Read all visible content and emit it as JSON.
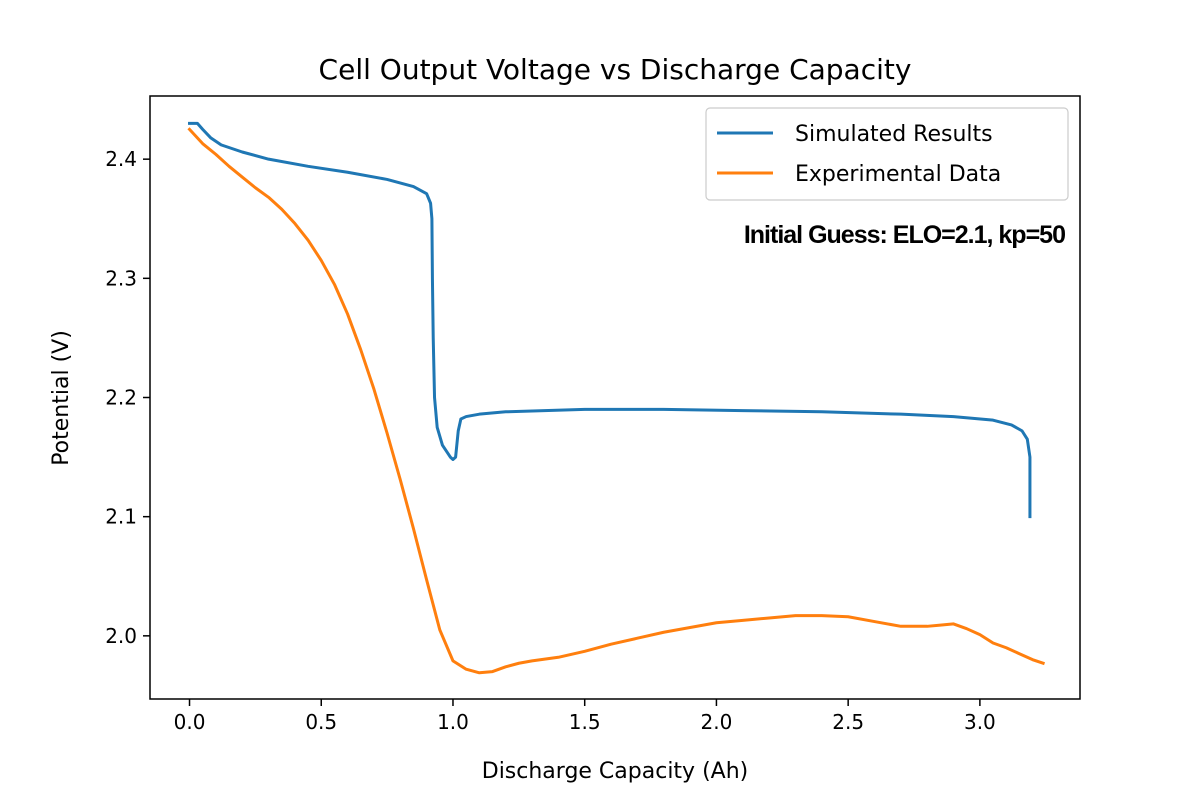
{
  "chart_data": {
    "type": "line",
    "title": "Cell Output Voltage vs Discharge Capacity",
    "xlabel": "Discharge Capacity (Ah)",
    "ylabel": "Potential (V)",
    "xlim": [
      -0.15,
      3.38
    ],
    "ylim": [
      1.947,
      2.453
    ],
    "xticks": [
      0.0,
      0.5,
      1.0,
      1.5,
      2.0,
      2.5,
      3.0
    ],
    "xtick_labels": [
      "0.0",
      "0.5",
      "1.0",
      "1.5",
      "2.0",
      "2.5",
      "3.0"
    ],
    "yticks": [
      2.0,
      2.1,
      2.2,
      2.3,
      2.4
    ],
    "ytick_labels": [
      "2.0",
      "2.1",
      "2.2",
      "2.3",
      "2.4"
    ],
    "grid": false,
    "legend_position": "top-right",
    "annotation": "Initial Guess: ELO=2.1, kp=50",
    "series": [
      {
        "name": "Simulated Results",
        "color": "#1f77b4",
        "x": [
          0.0,
          0.03,
          0.05,
          0.08,
          0.12,
          0.2,
          0.3,
          0.45,
          0.6,
          0.75,
          0.85,
          0.9,
          0.915,
          0.92,
          0.922,
          0.925,
          0.93,
          0.94,
          0.96,
          0.99,
          1.0,
          1.01,
          1.02,
          1.03,
          1.05,
          1.1,
          1.2,
          1.5,
          1.8,
          2.1,
          2.4,
          2.7,
          2.9,
          3.05,
          3.12,
          3.16,
          3.18,
          3.19,
          3.19
        ],
        "y": [
          2.43,
          2.43,
          2.425,
          2.418,
          2.412,
          2.406,
          2.4,
          2.394,
          2.389,
          2.383,
          2.377,
          2.371,
          2.363,
          2.35,
          2.3,
          2.25,
          2.2,
          2.175,
          2.16,
          2.15,
          2.148,
          2.15,
          2.172,
          2.182,
          2.184,
          2.186,
          2.188,
          2.19,
          2.19,
          2.189,
          2.188,
          2.186,
          2.184,
          2.181,
          2.177,
          2.172,
          2.165,
          2.15,
          2.1
        ]
      },
      {
        "name": "Experimental Data",
        "color": "#ff7f0e",
        "x": [
          0.0,
          0.05,
          0.1,
          0.15,
          0.2,
          0.25,
          0.3,
          0.35,
          0.4,
          0.45,
          0.5,
          0.55,
          0.6,
          0.65,
          0.7,
          0.75,
          0.8,
          0.85,
          0.9,
          0.95,
          1.0,
          1.05,
          1.1,
          1.15,
          1.2,
          1.25,
          1.3,
          1.4,
          1.5,
          1.6,
          1.7,
          1.8,
          1.9,
          2.0,
          2.1,
          2.2,
          2.3,
          2.4,
          2.5,
          2.6,
          2.7,
          2.8,
          2.85,
          2.9,
          2.95,
          3.0,
          3.05,
          3.1,
          3.15,
          3.2,
          3.24
        ],
        "y": [
          2.425,
          2.413,
          2.404,
          2.394,
          2.385,
          2.376,
          2.368,
          2.358,
          2.346,
          2.332,
          2.315,
          2.295,
          2.27,
          2.24,
          2.207,
          2.17,
          2.131,
          2.09,
          2.047,
          2.005,
          1.979,
          1.972,
          1.969,
          1.97,
          1.974,
          1.977,
          1.979,
          1.982,
          1.987,
          1.993,
          1.998,
          2.003,
          2.007,
          2.011,
          2.013,
          2.015,
          2.017,
          2.017,
          2.016,
          2.012,
          2.008,
          2.008,
          2.009,
          2.01,
          2.006,
          2.001,
          1.994,
          1.99,
          1.985,
          1.98,
          1.977
        ]
      }
    ]
  }
}
